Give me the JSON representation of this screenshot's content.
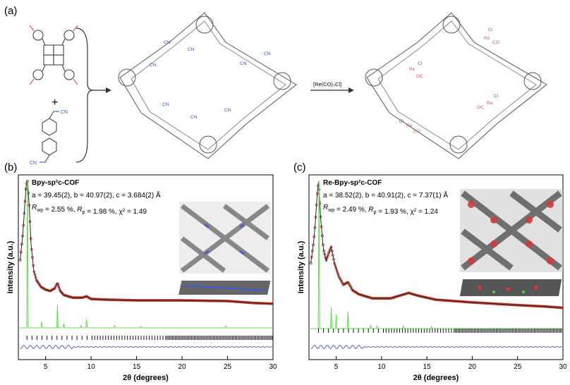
{
  "panel_a": {
    "label": "(a)",
    "plus": "+",
    "arrow_text": "[Re(CO)₃Cl]",
    "cn": "CN",
    "n": "N",
    "re": "Re",
    "co": "CO",
    "oc": "OC",
    "cl": "Cl"
  },
  "panel_b": {
    "label": "(b)",
    "name": "Bpy-sp²c-COF",
    "cell": "a = 39.45(2), b = 40.97(2), c = 3.684(2) Å",
    "fit": "Rwp = 2.55 %, Rp = 1.98 %, χ² = 1.49"
  },
  "panel_c": {
    "label": "(c)",
    "name": "Re-Bpy-sp²c-COF",
    "cell": "a = 38.52(2), b = 40.91(2), c = 7.37(1) Å",
    "fit": "Rwp = 2.49 %, Rp = 1.93 %, χ² = 1.24"
  },
  "colors": {
    "observed": "#c0392b",
    "calculated": "#222222",
    "simulated": "#66dd55",
    "bragg": "#111111",
    "difference": "#5566cc"
  },
  "chart_data": [
    {
      "type": "line",
      "xlabel": "2θ (degrees)",
      "ylabel": "Intensity (a.u.)",
      "xlim": [
        2,
        30
      ],
      "xticks": [
        5,
        10,
        15,
        20,
        25,
        30
      ],
      "series": [
        {
          "x": [
            2.2,
            2.5,
            2.7,
            2.85,
            3.0,
            3.2,
            3.4,
            3.7,
            4.0,
            4.5,
            5.0,
            5.5,
            6.0,
            6.3,
            6.6,
            7.0,
            8.0,
            9.0,
            9.5,
            10.0,
            12,
            15,
            20,
            25,
            28,
            30
          ],
          "values": [
            40,
            60,
            80,
            95,
            100,
            80,
            52,
            32,
            25,
            20,
            18,
            17,
            19,
            23,
            17,
            14,
            12,
            12,
            13,
            11,
            10.5,
            10,
            10,
            9.5,
            8,
            7.5
          ]
        }
      ]
    },
    {
      "type": "line",
      "xlabel": "2θ (degrees)",
      "ylabel": "Intensity (a.u.)",
      "xlim": [
        2,
        30
      ],
      "xticks": [
        5,
        10,
        15,
        20,
        25,
        30
      ],
      "series": [
        {
          "x": [
            2.2,
            2.5,
            2.7,
            2.9,
            3.05,
            3.3,
            3.6,
            3.9,
            4.2,
            4.45,
            4.8,
            5.3,
            5.8,
            6.3,
            6.8,
            7.5,
            9,
            11,
            12.5,
            13.0,
            14,
            16,
            20,
            25,
            28,
            30
          ],
          "values": [
            40,
            55,
            70,
            90,
            100,
            72,
            50,
            42,
            48,
            52,
            40,
            30,
            24,
            26,
            20,
            17,
            14,
            14,
            17,
            18,
            16,
            13,
            11,
            9,
            8,
            7
          ]
        }
      ]
    }
  ]
}
